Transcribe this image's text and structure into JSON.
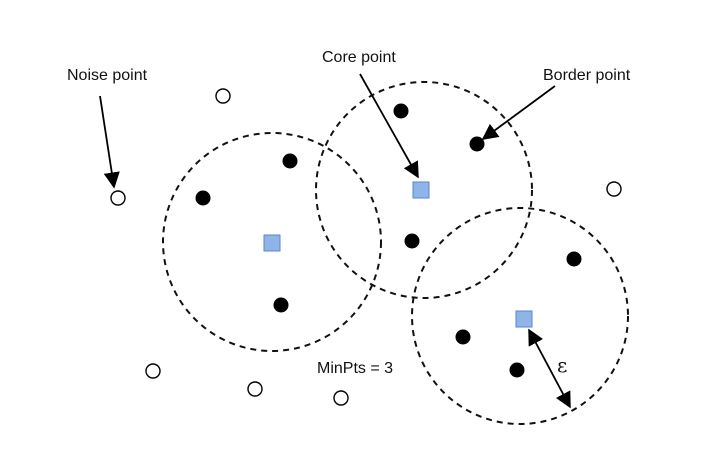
{
  "labels": {
    "noise_point": "Noise point",
    "core_point": "Core point",
    "border_point": "Border point",
    "minpts": "MinPts = 3",
    "epsilon": "ε"
  },
  "colors": {
    "core_fill": "#8fb4ea",
    "core_stroke": "#5a86c8",
    "point": "#000000",
    "noise_fill": "#ffffff"
  },
  "point_types": [
    "noise",
    "core",
    "border"
  ]
}
